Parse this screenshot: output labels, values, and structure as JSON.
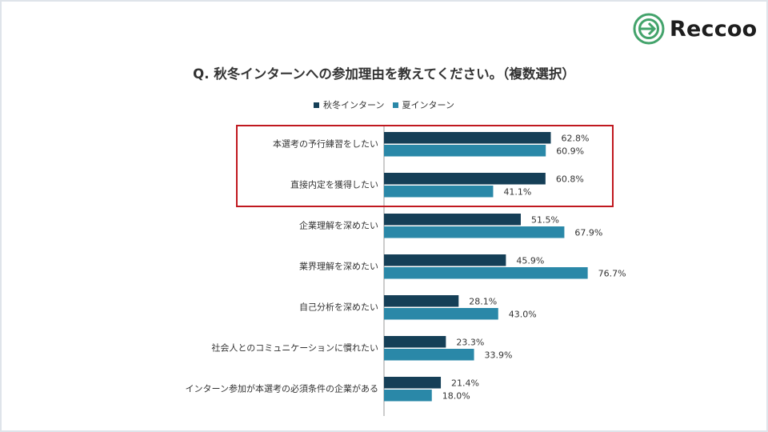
{
  "brand": {
    "name": "Reccoo"
  },
  "colors": {
    "series1": "#153f57",
    "series2": "#2a88a8",
    "highlight": "#c0181f",
    "text": "#333333"
  },
  "chart_data": {
    "type": "bar",
    "orientation": "horizontal",
    "title": "Q. 秋冬インターンへの参加理由を教えてください。（複数選択）",
    "legend_position": "top",
    "xlim": [
      0,
      100
    ],
    "grid": false,
    "categories": [
      "本選考の予行練習をしたい",
      "直接内定を獲得したい",
      "企業理解を深めたい",
      "業界理解を深めたい",
      "自己分析を深めたい",
      "社会人とのコミュニケーションに慣れたい",
      "インターン参加が本選考の必須条件の企業がある"
    ],
    "series": [
      {
        "name": "秋冬インターン",
        "values": [
          62.8,
          60.8,
          51.5,
          45.9,
          28.1,
          23.3,
          21.4
        ],
        "labels": [
          "62.8%",
          "60.8%",
          "51.5%",
          "45.9%",
          "28.1%",
          "23.3%",
          "21.4%"
        ]
      },
      {
        "name": "夏インターン",
        "values": [
          60.9,
          41.1,
          67.9,
          76.7,
          43.0,
          33.9,
          18.0
        ],
        "labels": [
          "60.9%",
          "41.1%",
          "67.9%",
          "76.7%",
          "43.0%",
          "33.9%",
          "18.0%"
        ]
      }
    ],
    "highlighted_categories": [
      0,
      1
    ]
  }
}
